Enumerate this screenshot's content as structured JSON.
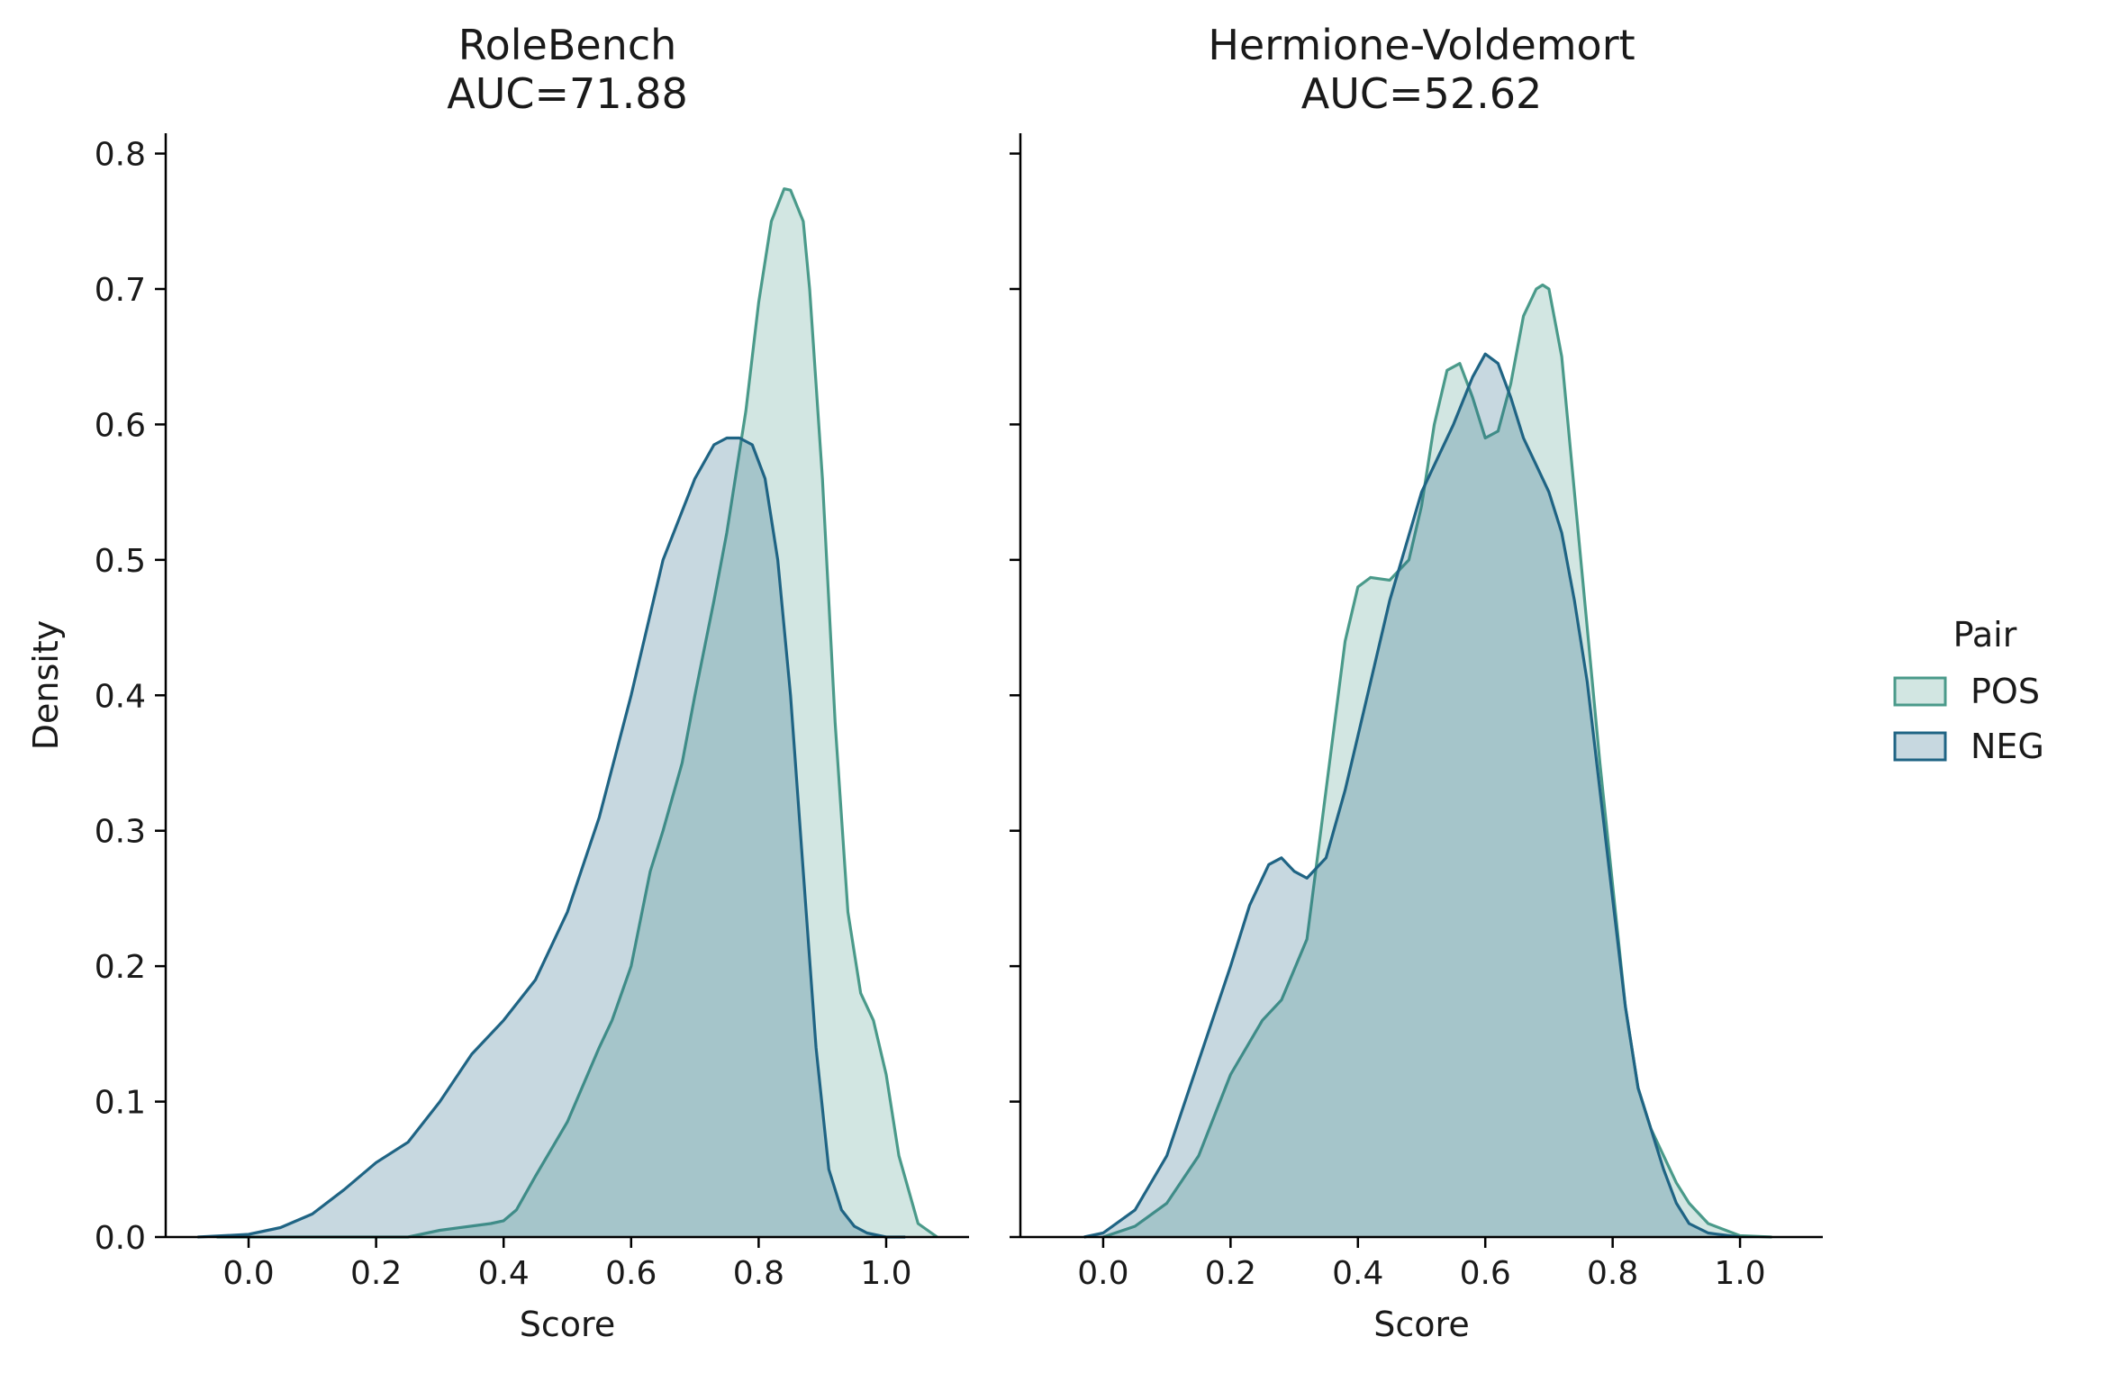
{
  "chart_data": [
    {
      "type": "area",
      "title": "RoleBench\nAUC=71.88",
      "title_lines": [
        "RoleBench",
        "AUC=71.88"
      ],
      "xlabel": "Score",
      "ylabel": "Density",
      "xlim": [
        -0.13,
        1.13
      ],
      "ylim": [
        0,
        0.815
      ],
      "xticks": [
        0.0,
        0.2,
        0.4,
        0.6,
        0.8,
        1.0
      ],
      "xtick_labels": [
        "0.0",
        "0.2",
        "0.4",
        "0.6",
        "0.8",
        "1.0"
      ],
      "yticks": [
        0.0,
        0.1,
        0.2,
        0.3,
        0.4,
        0.5,
        0.6,
        0.7,
        0.8
      ],
      "ytick_labels": [
        "0.0",
        "0.1",
        "0.2",
        "0.3",
        "0.4",
        "0.5",
        "0.6",
        "0.7",
        "0.8"
      ],
      "series": [
        {
          "name": "POS",
          "x": [
            -0.05,
            0.1,
            0.2,
            0.25,
            0.3,
            0.38,
            0.4,
            0.42,
            0.45,
            0.5,
            0.55,
            0.57,
            0.6,
            0.63,
            0.65,
            0.68,
            0.7,
            0.73,
            0.75,
            0.78,
            0.8,
            0.82,
            0.84,
            0.85,
            0.87,
            0.88,
            0.9,
            0.92,
            0.94,
            0.96,
            0.98,
            1.0,
            1.02,
            1.05,
            1.08
          ],
          "y": [
            0.0,
            0.0,
            0.0,
            0.0,
            0.005,
            0.01,
            0.012,
            0.02,
            0.045,
            0.085,
            0.14,
            0.16,
            0.2,
            0.27,
            0.3,
            0.35,
            0.4,
            0.47,
            0.52,
            0.61,
            0.69,
            0.75,
            0.774,
            0.773,
            0.75,
            0.7,
            0.56,
            0.38,
            0.24,
            0.18,
            0.16,
            0.12,
            0.06,
            0.01,
            0.0
          ]
        },
        {
          "name": "NEG",
          "x": [
            -0.08,
            0.0,
            0.05,
            0.1,
            0.15,
            0.2,
            0.25,
            0.3,
            0.35,
            0.4,
            0.45,
            0.5,
            0.55,
            0.6,
            0.65,
            0.7,
            0.73,
            0.75,
            0.77,
            0.79,
            0.81,
            0.83,
            0.85,
            0.87,
            0.89,
            0.91,
            0.93,
            0.95,
            0.97,
            1.0,
            1.03
          ],
          "y": [
            0.0,
            0.002,
            0.007,
            0.017,
            0.035,
            0.055,
            0.07,
            0.1,
            0.135,
            0.16,
            0.19,
            0.24,
            0.31,
            0.4,
            0.5,
            0.56,
            0.585,
            0.59,
            0.59,
            0.585,
            0.56,
            0.5,
            0.4,
            0.27,
            0.14,
            0.05,
            0.02,
            0.008,
            0.003,
            0.0,
            0.0
          ]
        }
      ]
    },
    {
      "type": "area",
      "title": "Hermione-Voldemort\nAUC=52.62",
      "title_lines": [
        "Hermione-Voldemort",
        "AUC=52.62"
      ],
      "xlabel": "Score",
      "xlim": [
        -0.13,
        1.13
      ],
      "ylim": [
        0,
        0.815
      ],
      "xticks": [
        0.0,
        0.2,
        0.4,
        0.6,
        0.8,
        1.0
      ],
      "xtick_labels": [
        "0.0",
        "0.2",
        "0.4",
        "0.6",
        "0.8",
        "1.0"
      ],
      "yticks": [
        0.0,
        0.1,
        0.2,
        0.3,
        0.4,
        0.5,
        0.6,
        0.7,
        0.8
      ],
      "series": [
        {
          "name": "POS",
          "x": [
            0.0,
            0.05,
            0.1,
            0.15,
            0.2,
            0.25,
            0.28,
            0.32,
            0.35,
            0.38,
            0.4,
            0.42,
            0.45,
            0.48,
            0.5,
            0.52,
            0.54,
            0.56,
            0.58,
            0.6,
            0.62,
            0.64,
            0.66,
            0.68,
            0.69,
            0.7,
            0.72,
            0.74,
            0.76,
            0.78,
            0.8,
            0.82,
            0.84,
            0.86,
            0.88,
            0.9,
            0.92,
            0.95,
            1.0,
            1.05
          ],
          "y": [
            0.0,
            0.008,
            0.025,
            0.06,
            0.12,
            0.16,
            0.175,
            0.22,
            0.33,
            0.44,
            0.48,
            0.487,
            0.485,
            0.5,
            0.54,
            0.6,
            0.64,
            0.645,
            0.62,
            0.59,
            0.595,
            0.63,
            0.68,
            0.7,
            0.703,
            0.7,
            0.65,
            0.55,
            0.45,
            0.35,
            0.26,
            0.17,
            0.11,
            0.08,
            0.06,
            0.04,
            0.025,
            0.01,
            0.001,
            0.0
          ]
        },
        {
          "name": "NEG",
          "x": [
            -0.03,
            0.0,
            0.05,
            0.1,
            0.15,
            0.2,
            0.23,
            0.26,
            0.28,
            0.3,
            0.32,
            0.35,
            0.38,
            0.4,
            0.45,
            0.5,
            0.55,
            0.58,
            0.6,
            0.62,
            0.64,
            0.66,
            0.68,
            0.7,
            0.72,
            0.74,
            0.76,
            0.78,
            0.8,
            0.82,
            0.84,
            0.86,
            0.88,
            0.9,
            0.92,
            0.95,
            1.0
          ],
          "y": [
            0.0,
            0.003,
            0.02,
            0.06,
            0.13,
            0.2,
            0.245,
            0.275,
            0.28,
            0.27,
            0.265,
            0.28,
            0.33,
            0.37,
            0.47,
            0.55,
            0.6,
            0.635,
            0.652,
            0.645,
            0.62,
            0.59,
            0.57,
            0.55,
            0.52,
            0.47,
            0.41,
            0.33,
            0.25,
            0.17,
            0.11,
            0.08,
            0.05,
            0.025,
            0.01,
            0.003,
            0.0
          ]
        }
      ]
    }
  ],
  "legend": {
    "title": "Pair",
    "items": [
      "POS",
      "NEG"
    ],
    "placement": "right"
  },
  "colors": {
    "POS": "#4a9a8a",
    "NEG": "#1f6484"
  }
}
